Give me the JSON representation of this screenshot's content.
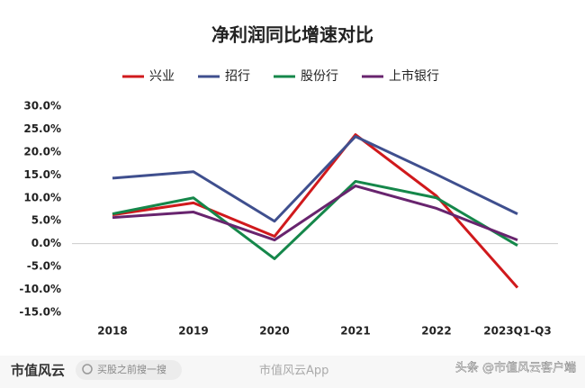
{
  "chart_data": {
    "type": "line",
    "title": "净利润同比增速对比",
    "categories": [
      "2018",
      "2019",
      "2020",
      "2021",
      "2022",
      "2023Q1-Q3"
    ],
    "series": [
      {
        "name": "兴业",
        "color": "#d0191c",
        "values": [
          6.3,
          8.9,
          1.6,
          23.8,
          10.4,
          -9.6
        ]
      },
      {
        "name": "招行",
        "color": "#3f4f8e",
        "values": [
          14.3,
          15.7,
          4.9,
          23.4,
          15.1,
          6.5
        ]
      },
      {
        "name": "股份行",
        "color": "#15874a",
        "values": [
          6.5,
          10.0,
          -3.3,
          13.6,
          10.0,
          -0.4
        ]
      },
      {
        "name": "上市银行",
        "color": "#68246e",
        "values": [
          5.7,
          6.9,
          0.8,
          12.6,
          7.7,
          0.8
        ]
      }
    ],
    "ylim": [
      -15,
      30
    ],
    "yticks": [
      {
        "value": -15,
        "label": "-15.0%"
      },
      {
        "value": -10,
        "label": "-10.0%"
      },
      {
        "value": -5,
        "label": "-5.0%"
      },
      {
        "value": 0,
        "label": "0.0%"
      },
      {
        "value": 5,
        "label": "5.0%"
      },
      {
        "value": 10,
        "label": "10.0%"
      },
      {
        "value": 15,
        "label": "15.0%"
      },
      {
        "value": 20,
        "label": "20.0%"
      },
      {
        "value": 25,
        "label": "25.0%"
      },
      {
        "value": 30,
        "label": "30.0%"
      }
    ],
    "legend": "top",
    "grid": false
  },
  "footer": {
    "logo": "市值风云",
    "search": "买股之前搜一搜",
    "app": "市值风云App",
    "source": "头条 @市值风云客户端"
  }
}
